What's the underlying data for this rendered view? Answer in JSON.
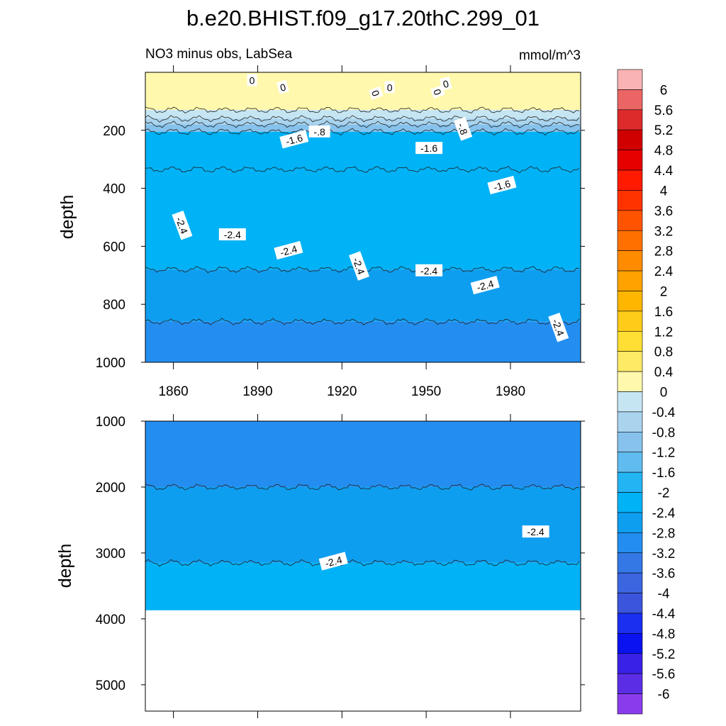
{
  "chart_data": {
    "type": "heatmap",
    "title": "b.e20.BHIST.f09_g17.20thC.299_01",
    "subtitle_left": "NO3 minus obs, LabSea",
    "units": "mmol/m^3",
    "ylabel": "depth",
    "xlim": [
      1850,
      2005
    ],
    "x_ticks": [
      "1860",
      "1890",
      "1920",
      "1950",
      "1980"
    ],
    "top_panel": {
      "ylim": [
        0,
        1000
      ],
      "y_ticks": [
        "200",
        "400",
        "600",
        "800",
        "1000"
      ],
      "layers": [
        {
          "from": 0,
          "to": 130,
          "level": 0.2
        },
        {
          "from": 130,
          "to": 160,
          "level": -0.2
        },
        {
          "from": 160,
          "to": 180,
          "level": -0.6
        },
        {
          "from": 180,
          "to": 205,
          "level": -1.0
        },
        {
          "from": 205,
          "to": 335,
          "level": -2.2
        },
        {
          "from": 335,
          "to": 680,
          "level": -2.2
        },
        {
          "from": 680,
          "to": 860,
          "level": -2.6
        },
        {
          "from": 860,
          "to": 1000,
          "level": -3.0
        }
      ],
      "contour_labels": [
        {
          "text": "0",
          "x": 1888,
          "y": 28
        },
        {
          "text": "0",
          "x": 1899,
          "y": 52
        },
        {
          "text": "0",
          "x": 1932,
          "y": 72
        },
        {
          "text": "0",
          "x": 1937,
          "y": 52
        },
        {
          "text": "0",
          "x": 1957,
          "y": 40
        },
        {
          "text": "0",
          "x": 1954,
          "y": 68
        },
        {
          "text": "-.8",
          "x": 1912,
          "y": 205
        },
        {
          "text": "-1.6",
          "x": 1903,
          "y": 232
        },
        {
          "text": "-.8",
          "x": 1963,
          "y": 195
        },
        {
          "text": "-1.6",
          "x": 1951,
          "y": 262
        },
        {
          "text": "-1.6",
          "x": 1977,
          "y": 390
        },
        {
          "text": "-2.4",
          "x": 1863,
          "y": 528
        },
        {
          "text": "-2.4",
          "x": 1881,
          "y": 560
        },
        {
          "text": "-2.4",
          "x": 1901,
          "y": 615
        },
        {
          "text": "-2.4",
          "x": 1926,
          "y": 668
        },
        {
          "text": "-2.4",
          "x": 1951,
          "y": 684
        },
        {
          "text": "-2.4",
          "x": 1971,
          "y": 735
        },
        {
          "text": "-2.4",
          "x": 1997,
          "y": 880
        }
      ]
    },
    "bottom_panel": {
      "ylim": [
        1000,
        5400
      ],
      "y_ticks": [
        "1000",
        "2000",
        "3000",
        "4000",
        "5000"
      ],
      "data_bottom_depth": 3870,
      "layers": [
        {
          "from": 1000,
          "to": 2000,
          "level": -3.0
        },
        {
          "from": 2000,
          "to": 3150,
          "level": -2.6
        },
        {
          "from": 3150,
          "to": 3870,
          "level": -2.2
        }
      ],
      "contour_labels": [
        {
          "text": "-2.4",
          "x": 1989,
          "y": 2680
        },
        {
          "text": "-2.4",
          "x": 1917,
          "y": 3130
        }
      ]
    },
    "colorbar": {
      "labels": [
        "6",
        "5.6",
        "5.2",
        "4.8",
        "4.4",
        "4",
        "3.6",
        "3.2",
        "2.8",
        "2.4",
        "2",
        "1.6",
        "1.2",
        "0.8",
        "0.4",
        "0",
        "-0.4",
        "-0.8",
        "-1.2",
        "-1.6",
        "-2",
        "-2.4",
        "-2.8",
        "-3.2",
        "-3.6",
        "-4",
        "-4.4",
        "-4.8",
        "-5.2",
        "-5.6",
        "-6"
      ],
      "colors": [
        "#f9b3b5",
        "#eb6565",
        "#dd2a2a",
        "#d10000",
        "#e60000",
        "#ff1a00",
        "#ff3300",
        "#ff5300",
        "#ff7000",
        "#ff8b00",
        "#ffa200",
        "#ffb600",
        "#ffcc1a",
        "#ffdf33",
        "#ffea66",
        "#fff8ad",
        "#c5e5f3",
        "#aad4ee",
        "#86c2ec",
        "#60bcf0",
        "#23b4f4",
        "#00b2f6",
        "#0e9ef0",
        "#238ef0",
        "#3478e6",
        "#3b66e0",
        "#3b55dc",
        "#1a2ff0",
        "#0a12ef",
        "#3a21e6",
        "#5b2ee6",
        "#8a3ced"
      ]
    }
  }
}
